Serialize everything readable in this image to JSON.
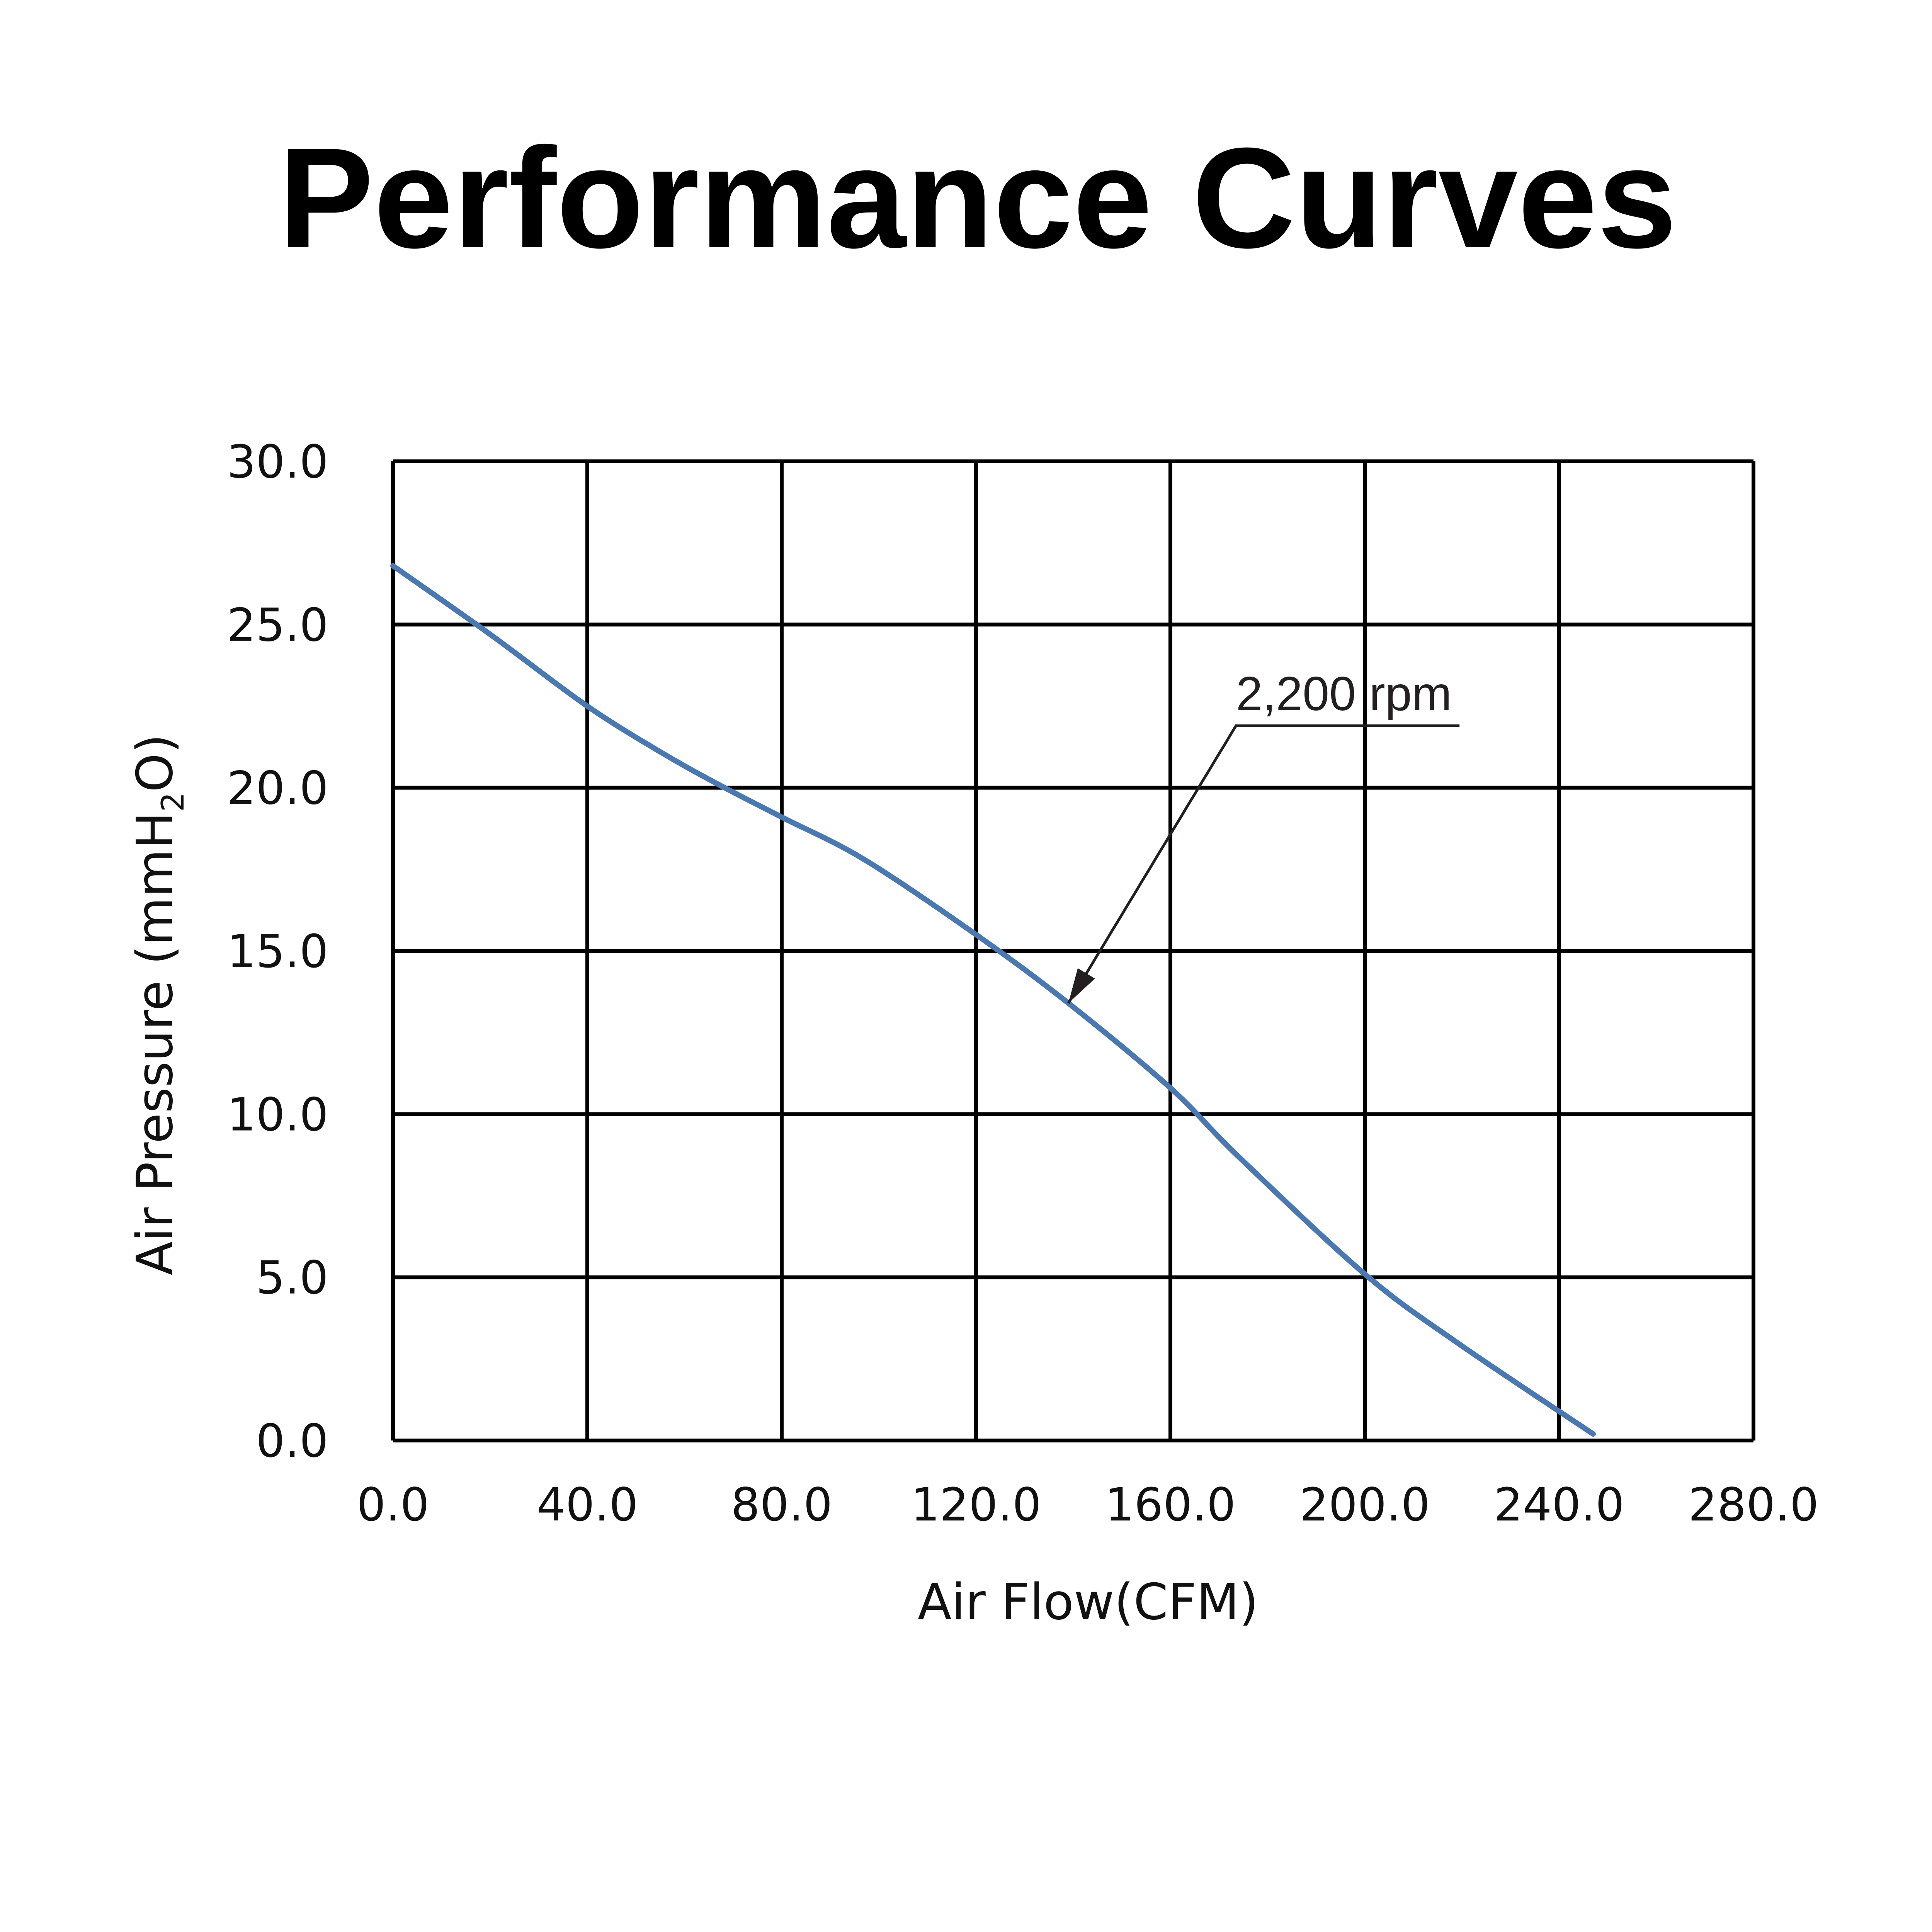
{
  "chart_data": {
    "type": "line",
    "title": "Performance Curves",
    "xlabel": "Air Flow(CFM)",
    "ylabel": {
      "prefix": "Air Pressure (mmH",
      "sub": "2",
      "suffix": "O)"
    },
    "xlim": [
      0,
      280
    ],
    "ylim": [
      0,
      30
    ],
    "xticks": [
      "0.0",
      "40.0",
      "80.0",
      "120.0",
      "160.0",
      "200.0",
      "240.0",
      "280.0"
    ],
    "yticks": [
      "0.0",
      "5.0",
      "10.0",
      "15.0",
      "20.0",
      "25.0",
      "30.0"
    ],
    "grid": true,
    "series": [
      {
        "name": "2,200 rpm",
        "color": "#4a78b0",
        "x": [
          0,
          20,
          40,
          55,
          67,
          80,
          97,
          120,
          139,
          160,
          174,
          200,
          219,
          247
        ],
        "y": [
          26.8,
          24.7,
          22.5,
          21.1,
          20.1,
          19.1,
          17.8,
          15.5,
          13.4,
          10.8,
          8.7,
          5.1,
          3.0,
          0.2
        ]
      }
    ],
    "annotations": [
      {
        "text": "2,200 rpm",
        "underline_x": [
          173.5,
          219.5
        ],
        "underline_y": 21.9,
        "arrow_to": [
          139,
          13.4
        ]
      }
    ]
  }
}
